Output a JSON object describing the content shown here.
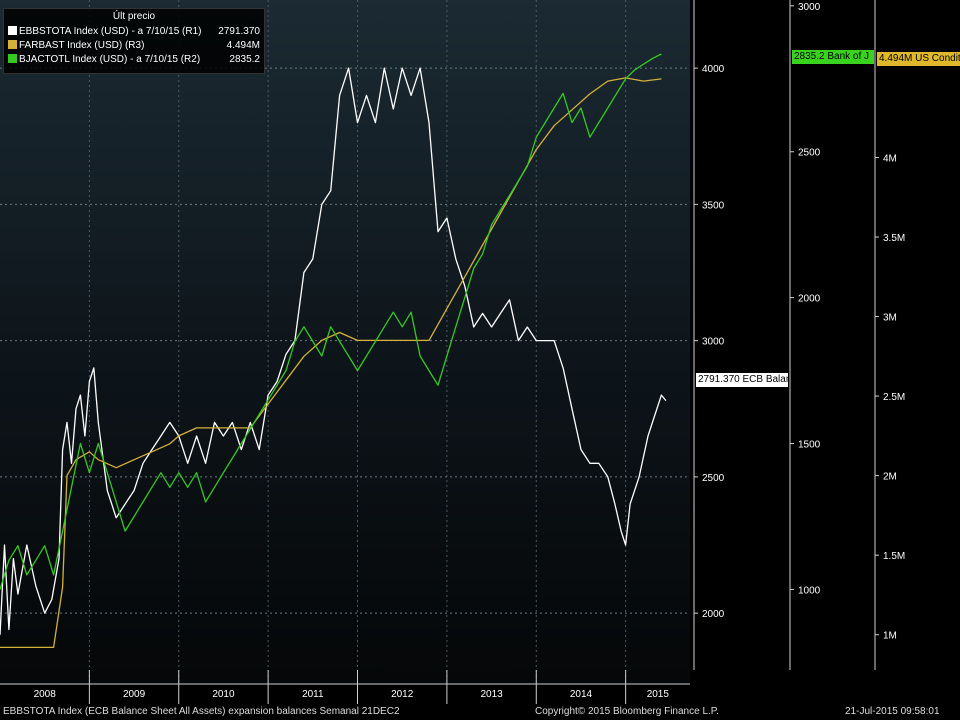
{
  "legend": {
    "title": "Últ precio",
    "rows": [
      {
        "label": "EBBSTOTA Index (USD) -  a 7/10/15  (R1)",
        "value": "2791.370",
        "color": "#ffffff"
      },
      {
        "label": "FARBAST Index (USD)  (R3)",
        "value": "4.494M",
        "color": "#d4b13a"
      },
      {
        "label": "BJACTOTL Index (USD) -  a 7/10/15  (R2)",
        "value": "2835.2",
        "color": "#35c820"
      }
    ]
  },
  "tags": {
    "ecb": "2791.370 ECB Balan",
    "boj": "2835.2 Bank of J",
    "fed": "4.494M US Condit"
  },
  "footer": {
    "left": "EBBSTOTA Index (ECB Balance Sheet All Assets) expansion balances  Semanal 21DEC2",
    "center": "Copyright© 2015 Bloomberg Finance L.P.",
    "right": "21-Jul-2015 09:58:01"
  },
  "colors": {
    "ecb": "#ffffff",
    "fed": "#d4b13a",
    "boj": "#35c820",
    "boj_tag": "#39d31f",
    "fed_tag": "#e0b92a"
  },
  "chart_data": {
    "type": "line",
    "x_axis": {
      "ticks": [
        "2008",
        "2009",
        "2010",
        "2011",
        "2012",
        "2013",
        "2014",
        "2015"
      ],
      "xlim": [
        2008.0,
        2015.72
      ]
    },
    "axes": {
      "R1": {
        "ylim": [
          1740,
          4250
        ],
        "ticks": [
          "2000",
          "2500",
          "3000",
          "3500",
          "4000"
        ]
      },
      "R2": {
        "ylim": [
          676,
          3020
        ],
        "ticks": [
          "1000",
          "1500",
          "2000",
          "2500",
          "3000"
        ]
      },
      "R3": {
        "ylim": [
          690000,
          4990000
        ],
        "ticks": [
          "1M",
          "1.5M",
          "2M",
          "2.5M",
          "3M",
          "3.5M",
          "4M"
        ]
      }
    },
    "series": [
      {
        "name": "EBBSTOTA Index (USD)",
        "key": "ecb",
        "axis": "R1",
        "points": [
          [
            2008.0,
            1920
          ],
          [
            2008.05,
            2250
          ],
          [
            2008.1,
            1940
          ],
          [
            2008.15,
            2200
          ],
          [
            2008.2,
            2070
          ],
          [
            2008.3,
            2250
          ],
          [
            2008.4,
            2100
          ],
          [
            2008.5,
            2000
          ],
          [
            2008.58,
            2050
          ],
          [
            2008.66,
            2200
          ],
          [
            2008.7,
            2600
          ],
          [
            2008.75,
            2700
          ],
          [
            2008.8,
            2550
          ],
          [
            2008.85,
            2750
          ],
          [
            2008.9,
            2800
          ],
          [
            2008.95,
            2650
          ],
          [
            2009.0,
            2850
          ],
          [
            2009.05,
            2900
          ],
          [
            2009.1,
            2700
          ],
          [
            2009.2,
            2450
          ],
          [
            2009.3,
            2350
          ],
          [
            2009.4,
            2400
          ],
          [
            2009.5,
            2450
          ],
          [
            2009.6,
            2550
          ],
          [
            2009.7,
            2600
          ],
          [
            2009.8,
            2650
          ],
          [
            2009.9,
            2700
          ],
          [
            2010.0,
            2650
          ],
          [
            2010.1,
            2550
          ],
          [
            2010.2,
            2650
          ],
          [
            2010.3,
            2550
          ],
          [
            2010.4,
            2700
          ],
          [
            2010.5,
            2650
          ],
          [
            2010.6,
            2700
          ],
          [
            2010.7,
            2600
          ],
          [
            2010.8,
            2700
          ],
          [
            2010.9,
            2600
          ],
          [
            2011.0,
            2800
          ],
          [
            2011.1,
            2850
          ],
          [
            2011.2,
            2950
          ],
          [
            2011.3,
            3000
          ],
          [
            2011.4,
            3250
          ],
          [
            2011.5,
            3300
          ],
          [
            2011.6,
            3500
          ],
          [
            2011.7,
            3550
          ],
          [
            2011.8,
            3900
          ],
          [
            2011.9,
            4000
          ],
          [
            2012.0,
            3800
          ],
          [
            2012.1,
            3900
          ],
          [
            2012.2,
            3800
          ],
          [
            2012.3,
            4000
          ],
          [
            2012.4,
            3850
          ],
          [
            2012.5,
            4000
          ],
          [
            2012.6,
            3900
          ],
          [
            2012.7,
            4000
          ],
          [
            2012.8,
            3800
          ],
          [
            2012.9,
            3400
          ],
          [
            2013.0,
            3450
          ],
          [
            2013.1,
            3300
          ],
          [
            2013.2,
            3200
          ],
          [
            2013.3,
            3050
          ],
          [
            2013.4,
            3100
          ],
          [
            2013.5,
            3050
          ],
          [
            2013.6,
            3100
          ],
          [
            2013.7,
            3150
          ],
          [
            2013.8,
            3000
          ],
          [
            2013.9,
            3050
          ],
          [
            2014.0,
            3000
          ],
          [
            2014.1,
            3000
          ],
          [
            2014.2,
            3000
          ],
          [
            2014.3,
            2900
          ],
          [
            2014.4,
            2750
          ],
          [
            2014.5,
            2600
          ],
          [
            2014.6,
            2550
          ],
          [
            2014.7,
            2550
          ],
          [
            2014.8,
            2500
          ],
          [
            2014.88,
            2400
          ],
          [
            2014.95,
            2300
          ],
          [
            2015.0,
            2250
          ],
          [
            2015.05,
            2400
          ],
          [
            2015.15,
            2500
          ],
          [
            2015.25,
            2650
          ],
          [
            2015.35,
            2750
          ],
          [
            2015.4,
            2800
          ],
          [
            2015.45,
            2780
          ]
        ]
      },
      {
        "name": "FARBAST Index (USD)",
        "key": "fed",
        "axis": "R3",
        "points": [
          [
            2008.0,
            920000
          ],
          [
            2008.3,
            920000
          ],
          [
            2008.6,
            920000
          ],
          [
            2008.7,
            1300000
          ],
          [
            2008.75,
            2000000
          ],
          [
            2008.85,
            2100000
          ],
          [
            2009.0,
            2150000
          ],
          [
            2009.1,
            2100000
          ],
          [
            2009.3,
            2050000
          ],
          [
            2009.5,
            2100000
          ],
          [
            2009.7,
            2150000
          ],
          [
            2009.9,
            2200000
          ],
          [
            2010.0,
            2250000
          ],
          [
            2010.2,
            2300000
          ],
          [
            2010.4,
            2300000
          ],
          [
            2010.6,
            2300000
          ],
          [
            2010.8,
            2300000
          ],
          [
            2011.0,
            2450000
          ],
          [
            2011.2,
            2600000
          ],
          [
            2011.4,
            2750000
          ],
          [
            2011.6,
            2850000
          ],
          [
            2011.8,
            2900000
          ],
          [
            2012.0,
            2850000
          ],
          [
            2012.2,
            2850000
          ],
          [
            2012.4,
            2850000
          ],
          [
            2012.6,
            2850000
          ],
          [
            2012.8,
            2850000
          ],
          [
            2013.0,
            3050000
          ],
          [
            2013.2,
            3250000
          ],
          [
            2013.4,
            3450000
          ],
          [
            2013.6,
            3650000
          ],
          [
            2013.8,
            3850000
          ],
          [
            2014.0,
            4050000
          ],
          [
            2014.2,
            4200000
          ],
          [
            2014.4,
            4300000
          ],
          [
            2014.6,
            4400000
          ],
          [
            2014.8,
            4480000
          ],
          [
            2015.0,
            4500000
          ],
          [
            2015.2,
            4480000
          ],
          [
            2015.4,
            4494000
          ]
        ]
      },
      {
        "name": "BJACTOTL Index (USD)",
        "key": "boj",
        "axis": "R2",
        "points": [
          [
            2008.0,
            1000
          ],
          [
            2008.1,
            1100
          ],
          [
            2008.2,
            1150
          ],
          [
            2008.3,
            1050
          ],
          [
            2008.4,
            1100
          ],
          [
            2008.5,
            1150
          ],
          [
            2008.6,
            1050
          ],
          [
            2008.7,
            1200
          ],
          [
            2008.8,
            1350
          ],
          [
            2008.9,
            1500
          ],
          [
            2009.0,
            1400
          ],
          [
            2009.1,
            1500
          ],
          [
            2009.2,
            1400
          ],
          [
            2009.3,
            1300
          ],
          [
            2009.4,
            1200
          ],
          [
            2009.5,
            1250
          ],
          [
            2009.6,
            1300
          ],
          [
            2009.7,
            1350
          ],
          [
            2009.8,
            1400
          ],
          [
            2009.9,
            1350
          ],
          [
            2010.0,
            1400
          ],
          [
            2010.1,
            1350
          ],
          [
            2010.2,
            1400
          ],
          [
            2010.3,
            1300
          ],
          [
            2010.4,
            1350
          ],
          [
            2010.5,
            1400
          ],
          [
            2010.6,
            1450
          ],
          [
            2010.7,
            1500
          ],
          [
            2010.8,
            1550
          ],
          [
            2010.9,
            1600
          ],
          [
            2011.0,
            1650
          ],
          [
            2011.1,
            1700
          ],
          [
            2011.2,
            1750
          ],
          [
            2011.3,
            1850
          ],
          [
            2011.4,
            1900
          ],
          [
            2011.5,
            1850
          ],
          [
            2011.6,
            1800
          ],
          [
            2011.7,
            1900
          ],
          [
            2011.8,
            1850
          ],
          [
            2011.9,
            1800
          ],
          [
            2012.0,
            1750
          ],
          [
            2012.1,
            1800
          ],
          [
            2012.2,
            1850
          ],
          [
            2012.3,
            1900
          ],
          [
            2012.4,
            1950
          ],
          [
            2012.5,
            1900
          ],
          [
            2012.6,
            1950
          ],
          [
            2012.7,
            1800
          ],
          [
            2012.8,
            1750
          ],
          [
            2012.9,
            1700
          ],
          [
            2013.0,
            1800
          ],
          [
            2013.1,
            1900
          ],
          [
            2013.2,
            2000
          ],
          [
            2013.3,
            2100
          ],
          [
            2013.4,
            2150
          ],
          [
            2013.5,
            2250
          ],
          [
            2013.6,
            2300
          ],
          [
            2013.7,
            2350
          ],
          [
            2013.8,
            2400
          ],
          [
            2013.9,
            2450
          ],
          [
            2014.0,
            2550
          ],
          [
            2014.1,
            2600
          ],
          [
            2014.2,
            2650
          ],
          [
            2014.3,
            2700
          ],
          [
            2014.4,
            2600
          ],
          [
            2014.5,
            2650
          ],
          [
            2014.6,
            2550
          ],
          [
            2014.7,
            2600
          ],
          [
            2014.8,
            2650
          ],
          [
            2014.9,
            2700
          ],
          [
            2015.0,
            2750
          ],
          [
            2015.1,
            2780
          ],
          [
            2015.2,
            2800
          ],
          [
            2015.3,
            2820
          ],
          [
            2015.4,
            2835
          ]
        ]
      }
    ]
  }
}
